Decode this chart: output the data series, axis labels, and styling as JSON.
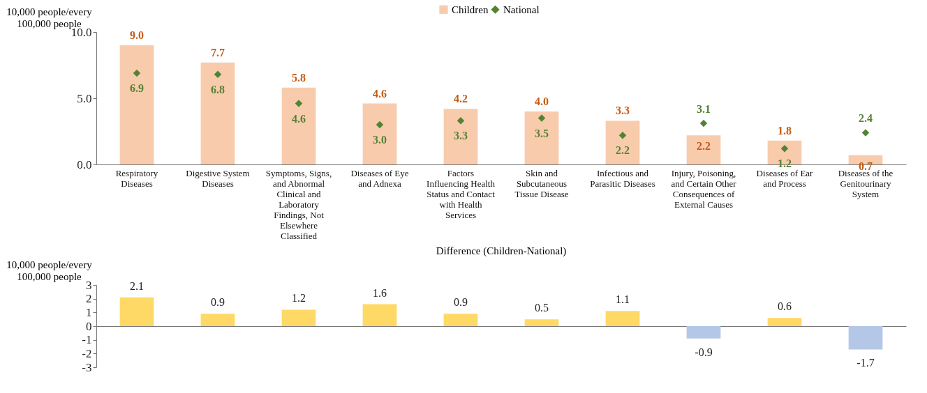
{
  "chart_data": [
    {
      "type": "bar",
      "ylabel": "10,000 people/every 100,000 people",
      "categories": [
        "Respiratory Diseases",
        "Digestive System Diseases",
        "Symptoms, Signs, and Abnormal Clinical and Laboratory Findings, Not Elsewhere Classified",
        "Diseases of Eye and Adnexa",
        "Factors Influencing Health Status and Contact with Health Services",
        "Skin and Subcutaneous Tissue Disease",
        "Infectious and Parasitic Diseases",
        "Injury, Poisoning, and Certain Other Consequences of External Causes",
        "Diseases of Ear and Process",
        "Diseases of the Genitourinary System"
      ],
      "series": [
        {
          "name": "Children",
          "type": "bar",
          "color": "#f8cbad",
          "values": [
            9.0,
            7.7,
            5.8,
            4.6,
            4.2,
            4.0,
            3.3,
            2.2,
            1.8,
            0.7
          ],
          "value_labels": [
            "9.0",
            "7.7",
            "5.8",
            "4.6",
            "4.2",
            "4.0",
            "3.3",
            "2.2",
            "1.8",
            "0.7"
          ]
        },
        {
          "name": "National",
          "type": "scatter",
          "color": "#548235",
          "values": [
            6.9,
            6.8,
            4.6,
            3.0,
            3.3,
            3.5,
            2.2,
            3.1,
            1.2,
            2.4
          ],
          "value_labels": [
            "6.9",
            "6.8",
            "4.6",
            "3.0",
            "3.3",
            "3.5",
            "2.2",
            "3.1",
            "1.2",
            "2.4"
          ]
        }
      ],
      "ylim": [
        0,
        10
      ],
      "yticks": [
        {
          "value": 0,
          "label": "0.0"
        },
        {
          "value": 5,
          "label": "5.0"
        },
        {
          "value": 10,
          "label": "10.0"
        }
      ],
      "legend": "top",
      "marker": "diamond"
    },
    {
      "type": "bar",
      "title": "Difference (Children-National)",
      "ylabel": "10,000 people/every 100,000 people",
      "categories": [
        null,
        null,
        null,
        null,
        null,
        null,
        null,
        null,
        null,
        null
      ],
      "values": [
        2.1,
        0.9,
        1.2,
        1.6,
        0.9,
        0.5,
        1.1,
        -0.9,
        0.6,
        -1.7
      ],
      "value_labels": [
        "2.1",
        "0.9",
        "1.2",
        "1.6",
        "0.9",
        "0.5",
        "1.1",
        "-0.9",
        "0.6",
        "-1.7"
      ],
      "colors": [
        "#ffd966",
        "#ffd966",
        "#ffd966",
        "#ffd966",
        "#ffd966",
        "#ffd966",
        "#ffd966",
        "#b4c7e7",
        "#ffd966",
        "#b4c7e7"
      ],
      "ylim": [
        -3,
        3
      ],
      "yticks": [
        -3,
        -2,
        -1,
        0,
        1,
        2,
        3
      ],
      "tick_labels": "y"
    }
  ]
}
